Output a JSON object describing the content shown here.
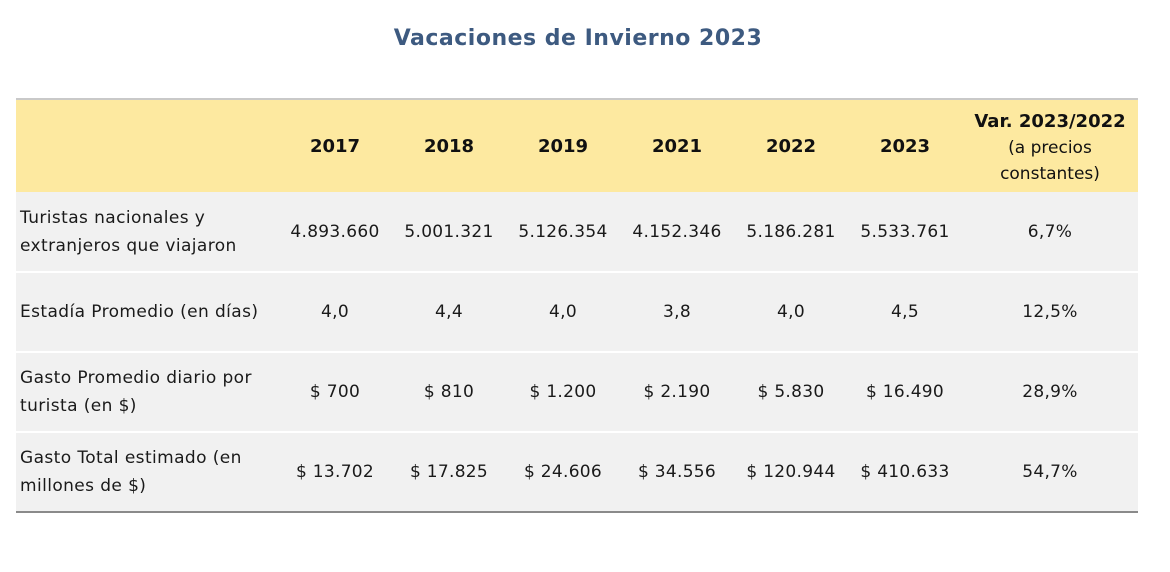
{
  "title": "Vacaciones de Invierno 2023",
  "colors": {
    "title": "#3d5a80",
    "header_bg": "#fde9a0",
    "row_bg": "#f1f1f1"
  },
  "table": {
    "headers": {
      "label": "",
      "years": [
        "2017",
        "2018",
        "2019",
        "2021",
        "2022",
        "2023"
      ],
      "var_title": "Var. 2023/2022",
      "var_note": "(a precios constantes)"
    },
    "rows": [
      {
        "label": "Turistas nacionales y extranjeros que viajaron",
        "values": [
          "4.893.660",
          "5.001.321",
          "5.126.354",
          "4.152.346",
          "5.186.281",
          "5.533.761"
        ],
        "var": "6,7%"
      },
      {
        "label": "Estadía Promedio (en días)",
        "values": [
          "4,0",
          "4,4",
          "4,0",
          "3,8",
          "4,0",
          "4,5"
        ],
        "var": "12,5%"
      },
      {
        "label": "Gasto Promedio diario por turista (en $)",
        "values": [
          "$ 700",
          "$ 810",
          "$ 1.200",
          "$ 2.190",
          "$ 5.830",
          "$ 16.490"
        ],
        "var": "28,9%"
      },
      {
        "label": "Gasto Total estimado (en millones de $)",
        "values": [
          "$ 13.702",
          "$ 17.825",
          "$ 24.606",
          "$ 34.556",
          "$ 120.944",
          "$ 410.633"
        ],
        "var": "54,7%"
      }
    ]
  }
}
